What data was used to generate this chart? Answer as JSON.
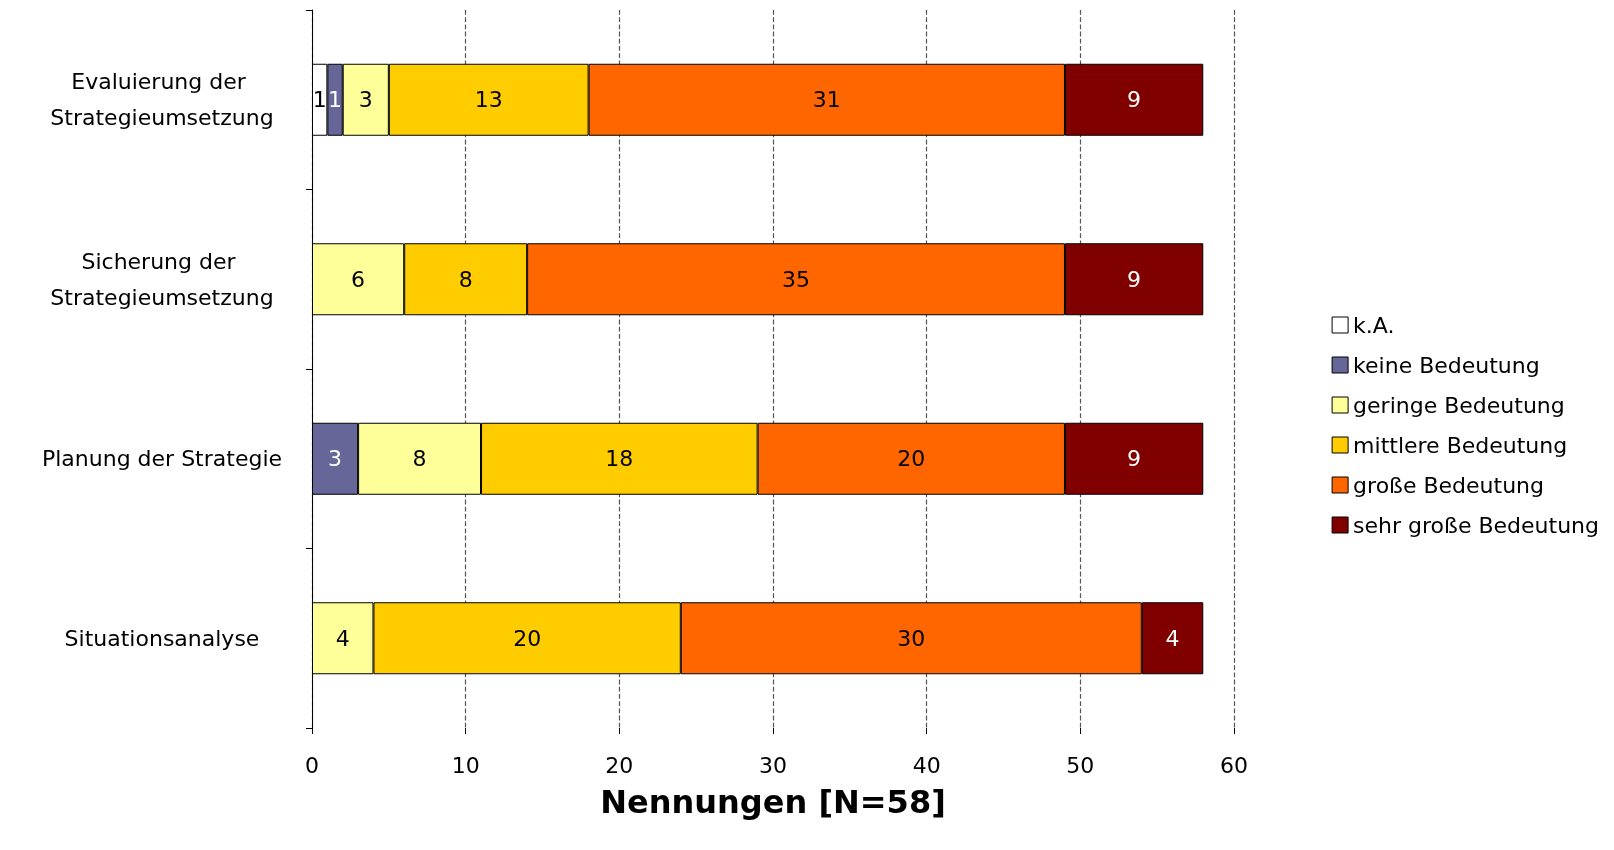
{
  "chart_data": {
    "type": "bar",
    "orientation": "horizontal",
    "stacked": true,
    "data_labels": true,
    "xlabel": "Nennungen [N=58]",
    "categories": [
      "Evaluierung der Strategieumsetzung",
      "Sicherung der Strategieumsetzung",
      "Planung der Strategie",
      "Situationsanalyse"
    ],
    "series": [
      {
        "name": "k.A.",
        "color": "#ffffff",
        "values": [
          1,
          null,
          null,
          null
        ]
      },
      {
        "name": "keine Bedeutung",
        "color": "#666699",
        "values": [
          1,
          null,
          3,
          null
        ]
      },
      {
        "name": "geringe Bedeutung",
        "color": "#ffff99",
        "values": [
          3,
          6,
          8,
          4
        ]
      },
      {
        "name": "mittlere Bedeutung",
        "color": "#ffcc00",
        "values": [
          13,
          8,
          18,
          20
        ]
      },
      {
        "name": "große Bedeutung",
        "color": "#ff6600",
        "values": [
          31,
          35,
          20,
          30
        ]
      },
      {
        "name": "sehr große Bedeutung",
        "color": "#800000",
        "values": [
          9,
          9,
          9,
          4
        ]
      }
    ],
    "xlim": [
      0,
      60
    ],
    "xticks": [
      0,
      10,
      20,
      30,
      40,
      50,
      60
    ],
    "grid": "x",
    "legend": "right"
  }
}
